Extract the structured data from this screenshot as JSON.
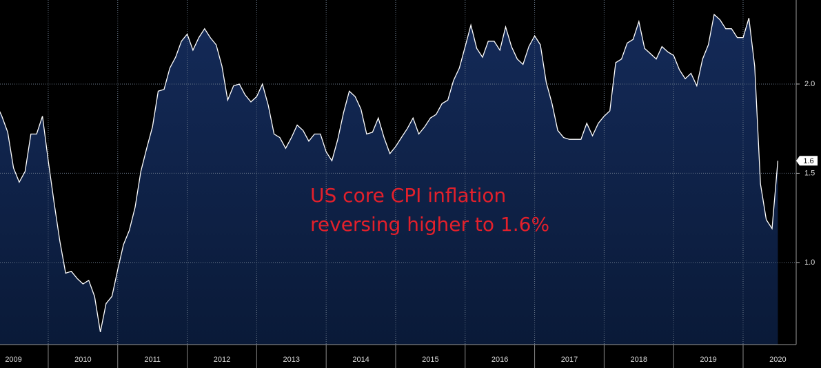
{
  "chart_data": {
    "type": "area",
    "annotation": [
      "US core CPI inflation",
      "reversing higher to 1.6%"
    ],
    "x": [
      2009.25,
      2009.333,
      2009.417,
      2009.5,
      2009.583,
      2009.667,
      2009.75,
      2009.833,
      2009.917,
      2010,
      2010.083,
      2010.167,
      2010.25,
      2010.333,
      2010.417,
      2010.5,
      2010.583,
      2010.667,
      2010.75,
      2010.833,
      2010.917,
      2011,
      2011.083,
      2011.167,
      2011.25,
      2011.333,
      2011.417,
      2011.5,
      2011.583,
      2011.667,
      2011.75,
      2011.833,
      2011.917,
      2012,
      2012.083,
      2012.167,
      2012.25,
      2012.333,
      2012.417,
      2012.5,
      2012.583,
      2012.667,
      2012.75,
      2012.833,
      2012.917,
      2013,
      2013.083,
      2013.167,
      2013.25,
      2013.333,
      2013.417,
      2013.5,
      2013.583,
      2013.667,
      2013.75,
      2013.833,
      2013.917,
      2014,
      2014.083,
      2014.167,
      2014.25,
      2014.333,
      2014.417,
      2014.5,
      2014.583,
      2014.667,
      2014.75,
      2014.833,
      2014.917,
      2015,
      2015.083,
      2015.167,
      2015.25,
      2015.333,
      2015.417,
      2015.5,
      2015.583,
      2015.667,
      2015.75,
      2015.833,
      2015.917,
      2016,
      2016.083,
      2016.167,
      2016.25,
      2016.333,
      2016.417,
      2016.5,
      2016.583,
      2016.667,
      2016.75,
      2016.833,
      2016.917,
      2017,
      2017.083,
      2017.167,
      2017.25,
      2017.333,
      2017.417,
      2017.5,
      2017.583,
      2017.667,
      2017.75,
      2017.833,
      2017.917,
      2018,
      2018.083,
      2018.167,
      2018.25,
      2018.333,
      2018.417,
      2018.5,
      2018.583,
      2018.667,
      2018.75,
      2018.833,
      2018.917,
      2019,
      2019.083,
      2019.167,
      2019.25,
      2019.333,
      2019.417,
      2019.5,
      2019.583,
      2019.667,
      2019.75,
      2019.833,
      2019.917,
      2020,
      2020.083,
      2020.167,
      2020.25,
      2020.333,
      2020.417,
      2020.5
    ],
    "values": [
      1.89,
      1.82,
      1.73,
      1.53,
      1.45,
      1.51,
      1.72,
      1.72,
      1.82,
      1.57,
      1.34,
      1.12,
      0.94,
      0.95,
      0.91,
      0.88,
      0.9,
      0.81,
      0.61,
      0.77,
      0.81,
      0.96,
      1.1,
      1.18,
      1.31,
      1.51,
      1.64,
      1.76,
      1.96,
      1.97,
      2.09,
      2.15,
      2.24,
      2.28,
      2.19,
      2.26,
      2.31,
      2.26,
      2.22,
      2.1,
      1.91,
      1.99,
      2.0,
      1.94,
      1.9,
      1.93,
      2.0,
      1.88,
      1.72,
      1.7,
      1.64,
      1.7,
      1.77,
      1.74,
      1.68,
      1.72,
      1.72,
      1.62,
      1.57,
      1.69,
      1.84,
      1.96,
      1.93,
      1.86,
      1.72,
      1.73,
      1.81,
      1.7,
      1.61,
      1.65,
      1.7,
      1.75,
      1.81,
      1.72,
      1.76,
      1.81,
      1.83,
      1.89,
      1.91,
      2.02,
      2.09,
      2.21,
      2.33,
      2.2,
      2.15,
      2.24,
      2.24,
      2.19,
      2.32,
      2.21,
      2.14,
      2.11,
      2.21,
      2.27,
      2.22,
      2.01,
      1.89,
      1.74,
      1.7,
      1.69,
      1.69,
      1.69,
      1.78,
      1.71,
      1.78,
      1.82,
      1.85,
      2.12,
      2.14,
      2.23,
      2.25,
      2.35,
      2.2,
      2.17,
      2.14,
      2.21,
      2.18,
      2.16,
      2.08,
      2.03,
      2.06,
      1.99,
      2.14,
      2.22,
      2.39,
      2.36,
      2.31,
      2.31,
      2.26,
      2.26,
      2.37,
      2.1,
      1.44,
      1.24,
      1.19,
      1.57
    ],
    "last_value_label": "1.6",
    "color": "#ffffff",
    "fill": "#0f2147",
    "xlim": [
      2009.306,
      2020.764
    ],
    "xticks": [
      {
        "value": 2009.5,
        "label": "2009"
      },
      {
        "value": 2010.5,
        "label": "2010"
      },
      {
        "value": 2011.5,
        "label": "2011"
      },
      {
        "value": 2012.5,
        "label": "2012"
      },
      {
        "value": 2013.5,
        "label": "2013"
      },
      {
        "value": 2014.5,
        "label": "2014"
      },
      {
        "value": 2015.5,
        "label": "2015"
      },
      {
        "value": 2016.5,
        "label": "2016"
      },
      {
        "value": 2017.5,
        "label": "2017"
      },
      {
        "value": 2018.5,
        "label": "2018"
      },
      {
        "value": 2019.5,
        "label": "2019"
      },
      {
        "value": 2020.5,
        "label": "2020"
      }
    ],
    "xgrid": [
      2010,
      2011,
      2012,
      2013,
      2014,
      2015,
      2016,
      2017,
      2018,
      2019,
      2020
    ],
    "ylim": [
      0.54,
      2.471
    ],
    "yticks": [
      {
        "value": 1,
        "label": "1.0"
      },
      1.5,
      {
        "value": 2,
        "label": "2.0"
      }
    ],
    "grid": true
  }
}
